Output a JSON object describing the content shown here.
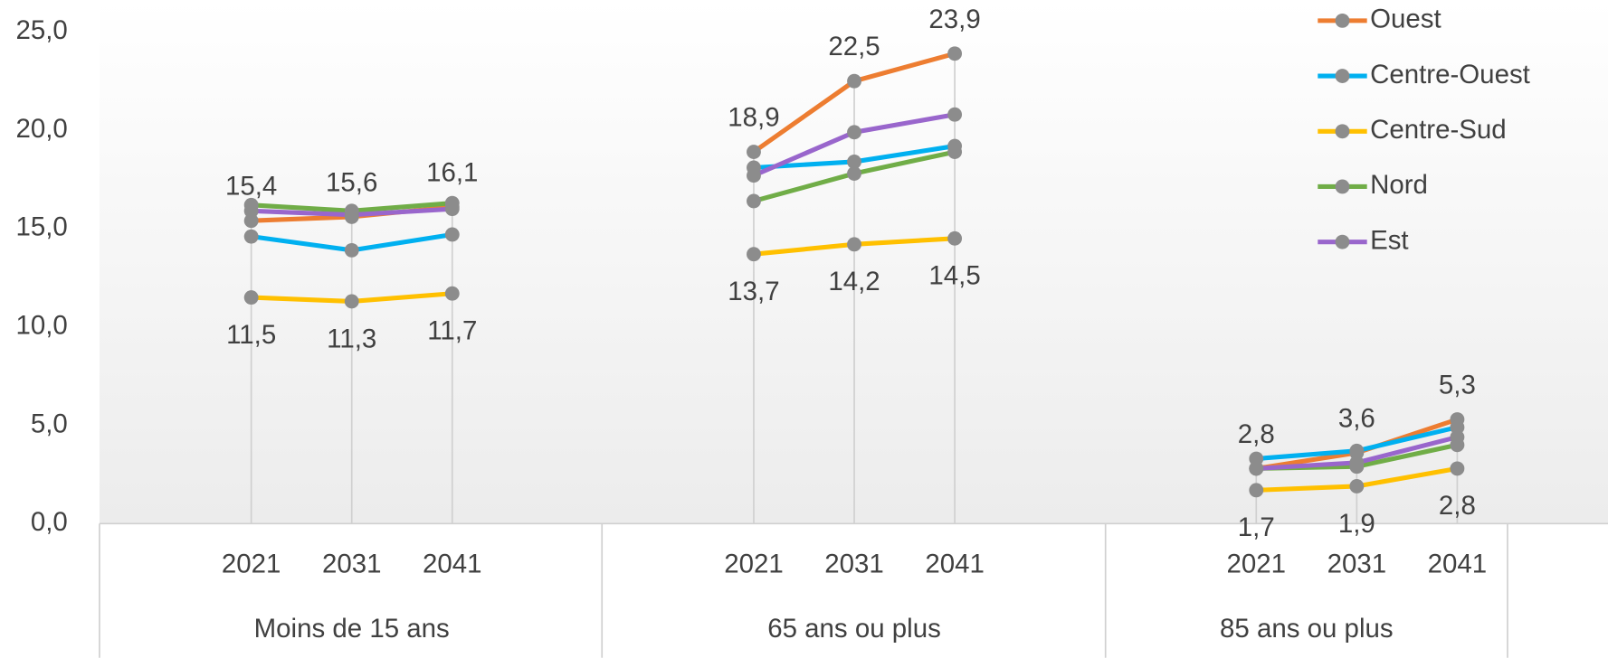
{
  "chart_data": {
    "type": "line",
    "groups": [
      "Moins de 15 ans",
      "65 ans ou plus",
      "85 ans ou plus"
    ],
    "categories": [
      "2021",
      "2031",
      "2041",
      "2021",
      "2031",
      "2041",
      "2021",
      "2031",
      "2041"
    ],
    "ylim": [
      0,
      25
    ],
    "yticks": [
      {
        "value": 0,
        "label": "0,0"
      },
      {
        "value": 5,
        "label": "5,0"
      },
      {
        "value": 10,
        "label": "10,0"
      },
      {
        "value": 15,
        "label": "15,0"
      },
      {
        "value": 20,
        "label": "20,0"
      },
      {
        "value": 25,
        "label": "25,0"
      }
    ],
    "legend": "top-right",
    "series": [
      {
        "name": "Ouest",
        "color": "#ed7d31",
        "values": [
          15.4,
          15.6,
          16.1,
          18.9,
          22.5,
          23.9,
          2.8,
          3.6,
          5.3
        ],
        "value_labels": [
          "15,4",
          "15,6",
          "16,1",
          "18,9",
          "22,5",
          "23,9",
          "2,8",
          "3,6",
          "5,3"
        ]
      },
      {
        "name": "Centre-Ouest",
        "color": "#00b0f0",
        "values": [
          14.6,
          13.9,
          14.7,
          18.1,
          18.4,
          19.2,
          3.3,
          3.7,
          4.9
        ]
      },
      {
        "name": "Centre-Sud",
        "color": "#ffc000",
        "values": [
          11.5,
          11.3,
          11.7,
          13.7,
          14.2,
          14.5,
          1.7,
          1.9,
          2.8
        ],
        "value_labels": [
          "11,5",
          "11,3",
          "11,7",
          "13,7",
          "14,2",
          "14,5",
          "1,7",
          "1,9",
          "2,8"
        ]
      },
      {
        "name": "Nord",
        "color": "#70ad47",
        "values": [
          16.2,
          15.9,
          16.3,
          16.4,
          17.8,
          18.9,
          2.8,
          2.9,
          4.0
        ]
      },
      {
        "name": "Est",
        "color": "#9966cc",
        "values": [
          15.9,
          15.7,
          16.0,
          17.7,
          19.9,
          20.8,
          2.8,
          3.1,
          4.4
        ]
      }
    ]
  }
}
